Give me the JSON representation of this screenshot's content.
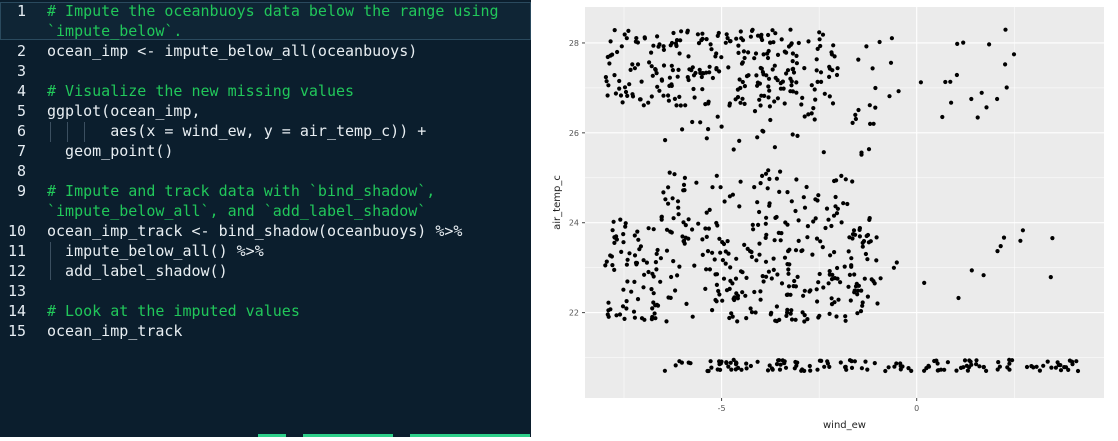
{
  "editor": {
    "lines": [
      {
        "n": "1",
        "segments": [
          {
            "t": "# Impute the oceanbuoys data below the range using",
            "c": "cm"
          }
        ]
      },
      {
        "n": "",
        "segments": [
          {
            "t": "`impute_below`.",
            "c": "cm"
          }
        ]
      },
      {
        "n": "2",
        "segments": [
          {
            "t": "ocean_imp <- impute_below_all(oceanbuoys)",
            "c": ""
          }
        ]
      },
      {
        "n": "3",
        "segments": []
      },
      {
        "n": "4",
        "segments": [
          {
            "t": "# Visualize the new missing values",
            "c": "cm"
          }
        ]
      },
      {
        "n": "5",
        "segments": [
          {
            "t": "ggplot(ocean_imp,",
            "c": ""
          }
        ]
      },
      {
        "n": "6",
        "segments": [
          {
            "t": "       aes(x = wind_ew, y = air_temp_c)) +",
            "c": ""
          }
        ]
      },
      {
        "n": "7",
        "segments": [
          {
            "t": "  geom_point()",
            "c": ""
          }
        ]
      },
      {
        "n": "8",
        "segments": []
      },
      {
        "n": "9",
        "segments": [
          {
            "t": "# Impute and track data with `bind_shadow`,",
            "c": "cm"
          }
        ]
      },
      {
        "n": "",
        "segments": [
          {
            "t": "`impute_below_all`, and `add_label_shadow`",
            "c": "cm"
          }
        ]
      },
      {
        "n": "10",
        "segments": [
          {
            "t": "ocean_imp_track <- bind_shadow(oceanbuoys) %>%",
            "c": ""
          }
        ]
      },
      {
        "n": "11",
        "segments": [
          {
            "t": "  impute_below_all() %>%",
            "c": ""
          }
        ]
      },
      {
        "n": "12",
        "segments": [
          {
            "t": "  add_label_shadow()",
            "c": ""
          }
        ]
      },
      {
        "n": "13",
        "segments": []
      },
      {
        "n": "14",
        "segments": [
          {
            "t": "# Look at the imputed values",
            "c": "cm"
          }
        ]
      },
      {
        "n": "15",
        "segments": [
          {
            "t": "ocean_imp_track",
            "c": ""
          }
        ]
      }
    ],
    "colors": {
      "background": "#0b1e2d",
      "comment": "#21c75a",
      "text": "#e8eef2"
    }
  },
  "chart_data": {
    "type": "scatter",
    "xlabel": "wind_ew",
    "ylabel": "air_temp_c",
    "xlim": [
      -8.5,
      4.8
    ],
    "ylim": [
      20.1,
      28.8
    ],
    "x_ticks": [
      -5,
      0
    ],
    "y_ticks": [
      22,
      24,
      26,
      28
    ],
    "grid": true,
    "panel_background": "#ebebeb",
    "point_color": "#000000",
    "clusters": [
      {
        "x_range": [
          -8.0,
          -2.0
        ],
        "y_range": [
          26.6,
          28.3
        ],
        "count": 260
      },
      {
        "x_range": [
          -2.0,
          2.8
        ],
        "y_range": [
          26.3,
          28.3
        ],
        "count": 28
      },
      {
        "x_range": [
          -6.5,
          -1.0
        ],
        "y_range": [
          25.5,
          26.6
        ],
        "count": 35
      },
      {
        "x_range": [
          -6.5,
          -1.5
        ],
        "y_range": [
          24.2,
          25.2
        ],
        "count": 60
      },
      {
        "x_range": [
          -8.0,
          -1.0
        ],
        "y_range": [
          21.8,
          24.2
        ],
        "count": 330
      },
      {
        "x_range": [
          -1.0,
          3.5
        ],
        "y_range": [
          22.2,
          24.0
        ],
        "count": 14
      },
      {
        "x_range": [
          -6.5,
          4.3
        ],
        "y_range": [
          20.7,
          20.95
        ],
        "count": 140
      }
    ]
  }
}
